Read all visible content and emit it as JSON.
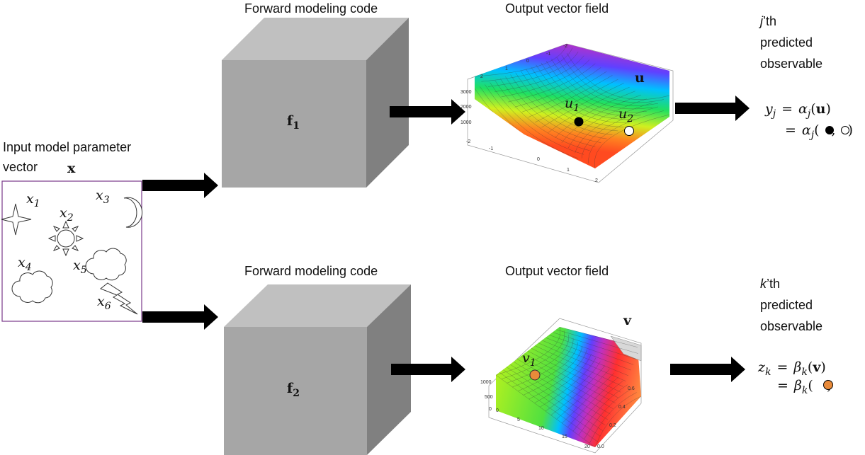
{
  "input": {
    "title_line1": "Input model parameter",
    "title_line2": "vector",
    "vector_symbol": "x",
    "variables": [
      {
        "symbol": "x",
        "subscript": "1"
      },
      {
        "symbol": "x",
        "subscript": "2"
      },
      {
        "symbol": "x",
        "subscript": "3"
      },
      {
        "symbol": "x",
        "subscript": "4"
      },
      {
        "symbol": "x",
        "subscript": "5"
      },
      {
        "symbol": "x",
        "subscript": "6"
      }
    ]
  },
  "pipelines": [
    {
      "code_label": "Forward modeling code",
      "function": {
        "symbol": "f",
        "subscript": "1"
      },
      "field_label": "Output vector field",
      "field_symbol": "u",
      "points": [
        {
          "symbol": "u",
          "subscript": "1"
        },
        {
          "symbol": "u",
          "subscript": "2"
        }
      ],
      "plot_ticks": {
        "vertical": [
          "3000",
          "2000",
          "1000"
        ],
        "front": [
          "-2",
          "-1",
          "0",
          "1",
          "2"
        ],
        "back": [
          "2",
          "1",
          "0",
          "-1",
          "-2"
        ]
      },
      "observable": {
        "index": "j",
        "title_rest": "’th",
        "line2": "predicted",
        "line3": "observable"
      },
      "equation": {
        "lhs": "y",
        "lhs_sub": "j",
        "eq": "=",
        "func": "α",
        "func_sub": "j",
        "open": "(",
        "arg": "u",
        "close": ")",
        "sep": ","
      }
    },
    {
      "code_label": "Forward modeling code",
      "function": {
        "symbol": "f",
        "subscript": "2"
      },
      "field_label": "Output vector field",
      "field_symbol": "v",
      "points": [
        {
          "symbol": "v",
          "subscript": "1"
        }
      ],
      "plot_ticks": {
        "vertical": [
          "1000",
          "500",
          "0"
        ],
        "front": [
          "0",
          "5",
          "10",
          "15",
          "20"
        ],
        "back": [
          "0.0",
          "0.2",
          "0.4",
          "0.6"
        ]
      },
      "observable": {
        "index": "k",
        "title_rest": "’th",
        "line2": "predicted",
        "line3": "observable"
      },
      "equation": {
        "lhs": "z",
        "lhs_sub": "k",
        "eq": "=",
        "func": "β",
        "func_sub": "k",
        "open": "(",
        "arg": "v",
        "close": ")"
      }
    }
  ]
}
